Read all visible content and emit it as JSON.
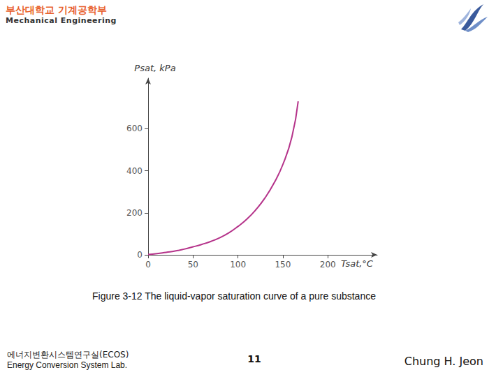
{
  "header": {
    "title": "부산대학교 기계공학부",
    "subtitle": "Mechanical Engineering"
  },
  "chart_data": {
    "type": "line",
    "color": "#b5338a",
    "x_label": "Tsat,°C",
    "y_label": "Psat, kPa",
    "x": [
      0,
      10,
      20,
      30,
      40,
      50,
      60,
      70,
      80,
      90,
      100,
      110,
      120,
      130,
      140,
      150,
      160,
      167
    ],
    "values": [
      2,
      6,
      12,
      18,
      27,
      38,
      50,
      64,
      82,
      105,
      135,
      170,
      215,
      270,
      340,
      430,
      560,
      730
    ],
    "xlim": [
      0,
      255
    ],
    "xticks": [
      0,
      50,
      100,
      150,
      200
    ],
    "ylim": [
      0,
      840
    ],
    "yticks": [
      0,
      200,
      400,
      600
    ],
    "grid": false
  },
  "caption": "Figure 3-12 The liquid-vapor saturation curve of a pure substance",
  "footer": {
    "lab_korean": "에너지변환시스템연구실(ECOS)",
    "lab_english": "Energy Conversion System Lab.",
    "page": "11",
    "author": "Chung H. Jeon"
  }
}
